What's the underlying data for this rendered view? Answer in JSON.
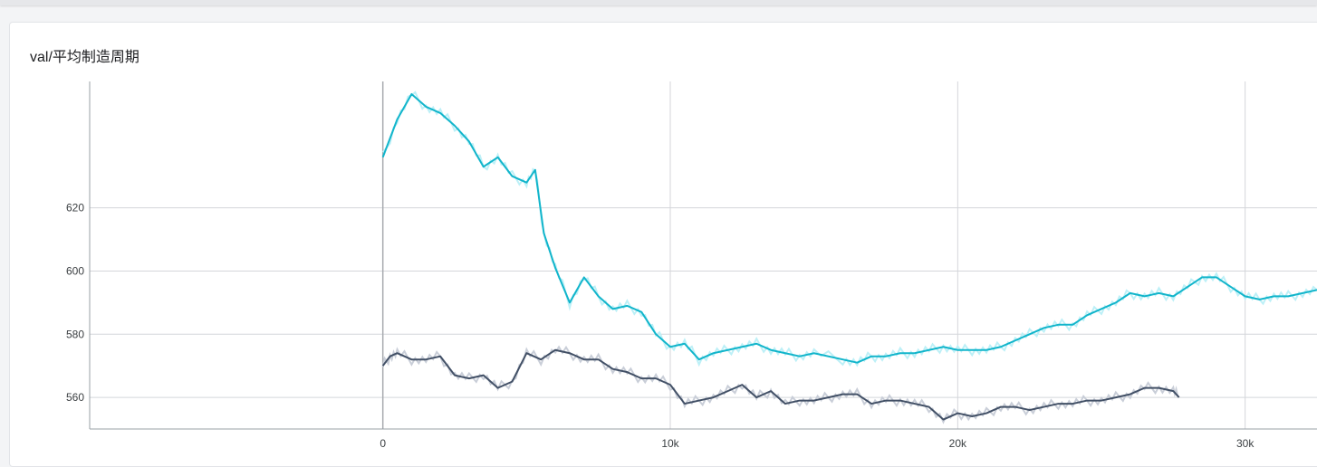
{
  "card": {
    "title": "val/平均制造周期"
  },
  "chart_data": {
    "type": "line",
    "title": "val/平均制造周期",
    "xlabel": "",
    "ylabel": "",
    "xlim": [
      -10200,
      32500
    ],
    "ylim": [
      550,
      660
    ],
    "x_ticks": [
      0,
      10000,
      20000,
      30000
    ],
    "x_tick_labels": [
      "0",
      "10k",
      "20k",
      "30k"
    ],
    "y_ticks": [
      560,
      580,
      600,
      620
    ],
    "y_tick_labels": [
      "560",
      "580",
      "600",
      "620"
    ],
    "grid": true,
    "legend": "none",
    "series": [
      {
        "color": "#12b5cb",
        "raw_color": "#bdf0f7",
        "x": [
          0,
          500,
          1000,
          1500,
          2000,
          2500,
          3000,
          3500,
          4000,
          4500,
          5000,
          5300,
          5600,
          6000,
          6500,
          7000,
          7500,
          8000,
          8500,
          9000,
          9500,
          10000,
          10500,
          11000,
          11500,
          12000,
          12500,
          13000,
          13500,
          14000,
          14500,
          15000,
          16000,
          16500,
          17000,
          17500,
          18000,
          18500,
          19000,
          19500,
          20000,
          20500,
          21000,
          21500,
          22000,
          22500,
          23000,
          23500,
          24000,
          24500,
          25000,
          25500,
          26000,
          26500,
          27000,
          27500,
          28000,
          28500,
          29000,
          29500,
          30000,
          30500,
          31000,
          31500,
          32000,
          32500
        ],
        "y": [
          636,
          648,
          656,
          652,
          650,
          646,
          641,
          633,
          636,
          630,
          628,
          632,
          612,
          601,
          590,
          598,
          592,
          588,
          589,
          587,
          580,
          576,
          577,
          572,
          574,
          575,
          576,
          577,
          575,
          574,
          573,
          574,
          572,
          571,
          573,
          573,
          574,
          574,
          575,
          576,
          575,
          575,
          575,
          576,
          578,
          580,
          582,
          583,
          583,
          586,
          588,
          590,
          593,
          592,
          593,
          592,
          595,
          598,
          598,
          595,
          592,
          591,
          592,
          592,
          593,
          594
        ]
      },
      {
        "color": "#425066",
        "raw_color": "#c9ced8",
        "x": [
          0,
          250,
          500,
          1000,
          1500,
          2000,
          2500,
          3000,
          3500,
          4000,
          4500,
          5000,
          5500,
          6000,
          6500,
          7000,
          7500,
          8000,
          8500,
          9000,
          9500,
          10000,
          10500,
          11000,
          11500,
          12000,
          12500,
          13000,
          13500,
          14000,
          14500,
          15000,
          15500,
          16000,
          16500,
          17000,
          17500,
          18000,
          18500,
          19000,
          19500,
          20000,
          20500,
          21000,
          21500,
          22000,
          22500,
          23000,
          23500,
          24000,
          24500,
          25000,
          25500,
          26000,
          26500,
          27000,
          27500,
          27700
        ],
        "y": [
          570,
          573,
          574,
          572,
          572,
          573,
          567,
          566,
          567,
          563,
          565,
          574,
          572,
          575,
          574,
          572,
          572,
          569,
          568,
          566,
          566,
          564,
          558,
          559,
          560,
          562,
          564,
          560,
          562,
          558,
          559,
          559,
          560,
          561,
          561,
          558,
          559,
          559,
          558,
          557,
          553,
          555,
          554,
          555,
          557,
          557,
          556,
          557,
          558,
          558,
          559,
          559,
          560,
          561,
          563,
          563,
          562,
          560
        ]
      }
    ]
  }
}
